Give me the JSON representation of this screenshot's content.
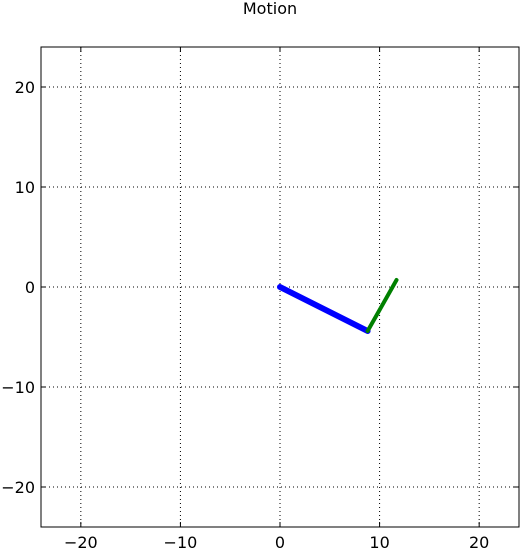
{
  "chart_data": {
    "type": "line",
    "title": "Motion",
    "xlabel": "",
    "ylabel": "",
    "xlim": [
      -24,
      24
    ],
    "ylim": [
      -24,
      24
    ],
    "grid": true,
    "grid_style": "dotted",
    "x_ticks": [
      -20,
      -10,
      0,
      10,
      20
    ],
    "y_ticks": [
      -20,
      -10,
      0,
      10,
      20
    ],
    "x_tick_labels": [
      "−20",
      "−10",
      "0",
      "10",
      "20"
    ],
    "y_tick_labels": [
      "−20",
      "−10",
      "0",
      "10",
      "20"
    ],
    "series": [
      {
        "color": "#0000ff",
        "line_width": 6,
        "x": [
          0,
          8.8
        ],
        "y": [
          0,
          -4.4
        ]
      },
      {
        "color": "#008000",
        "line_width": 4,
        "x": [
          8.8,
          11.7
        ],
        "y": [
          -4.4,
          0.7
        ]
      }
    ]
  }
}
